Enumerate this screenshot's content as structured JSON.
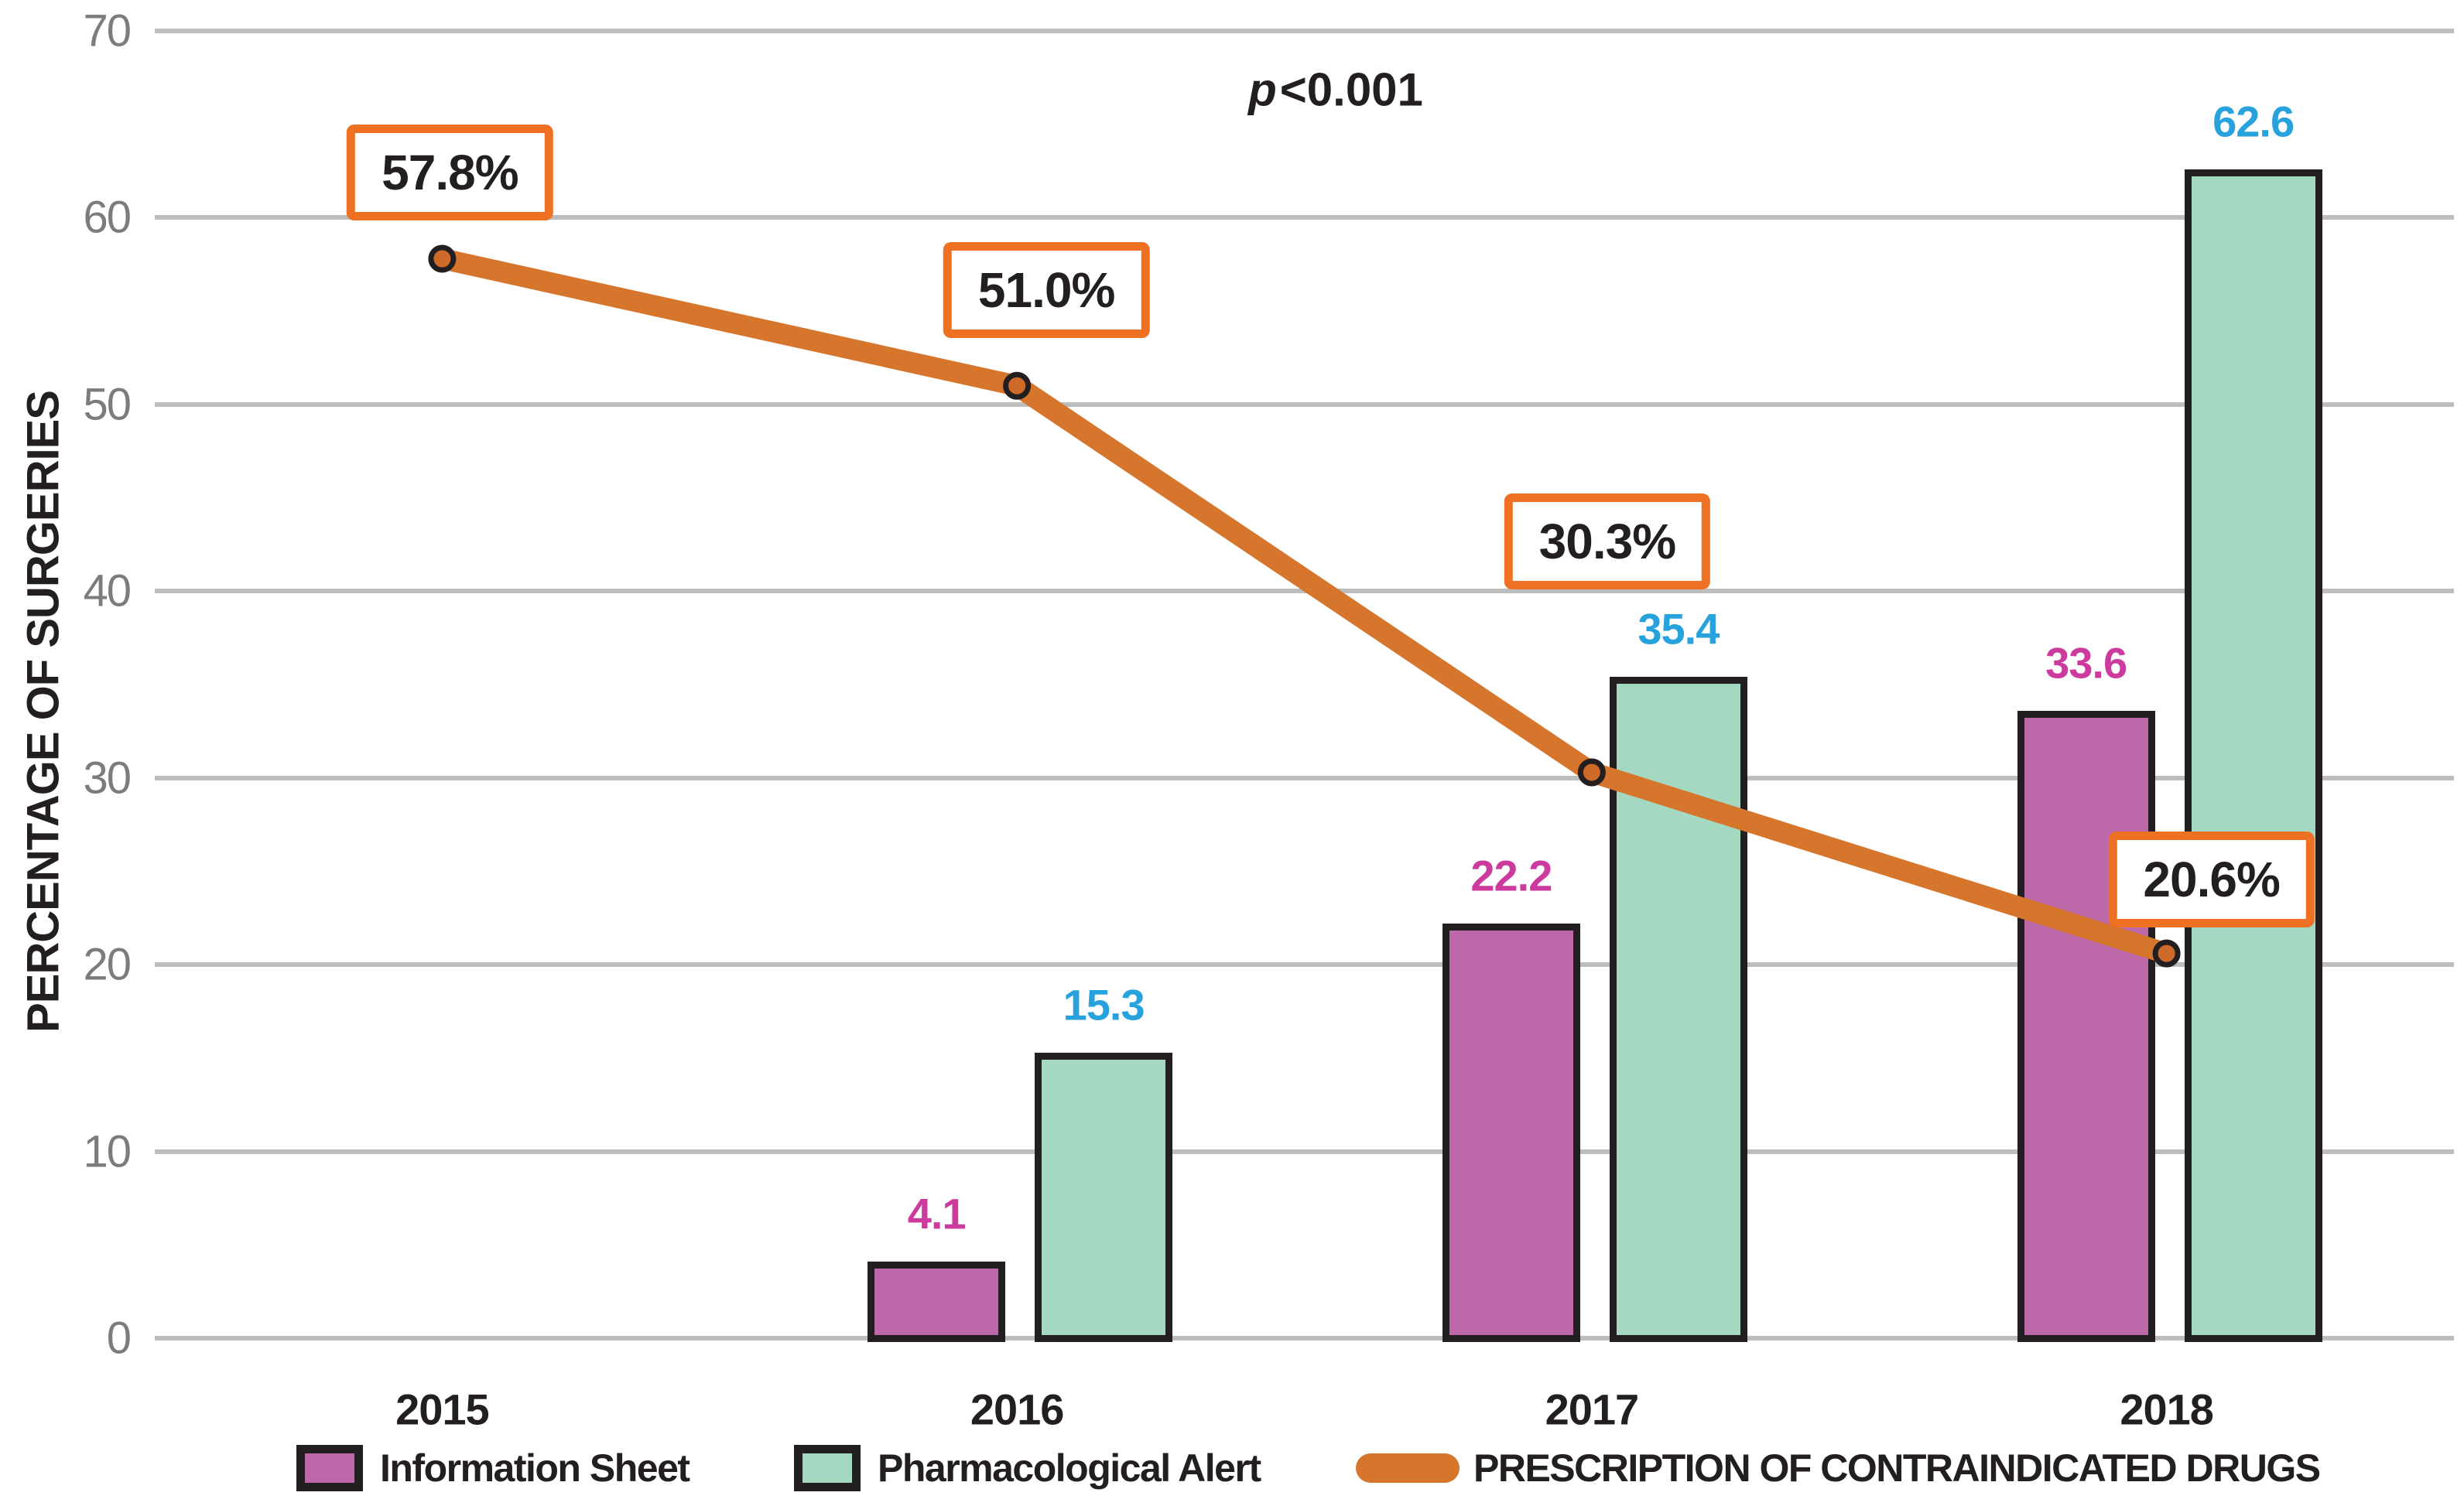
{
  "figure": {
    "annotation_p": "p",
    "annotation_rest": "<0.001"
  },
  "chart_data": {
    "type": "combo-bar-line",
    "categories": [
      "2015",
      "2016",
      "2017",
      "2018"
    ],
    "ylabel": "PERCENTAGE OF SURGERIES",
    "ylim": [
      0,
      70
    ],
    "ytick_step": 10,
    "grid": true,
    "legend_position": "bottom",
    "annotation": "p<0.001",
    "series": [
      {
        "name": "Information Sheet",
        "type": "bar",
        "color": "#bc68a9",
        "label_color": "#cd3a9d",
        "values": [
          null,
          4.1,
          22.2,
          33.6
        ],
        "value_labels": [
          "",
          "4.1",
          "22.2",
          "33.6"
        ]
      },
      {
        "name": "Pharmacological Alert",
        "type": "bar",
        "color": "#a5d8c1",
        "label_color": "#27a2dd",
        "values": [
          null,
          15.3,
          35.4,
          62.6
        ],
        "value_labels": [
          "",
          "15.3",
          "35.4",
          "62.6"
        ]
      },
      {
        "name": "PRESCRIPTION OF CONTRAINDICATED DRUGS",
        "type": "line",
        "color": "#d6752c",
        "marker_fill": "#cf6b28",
        "marker_stroke": "#231f20",
        "callout_border": "#ee7023",
        "values": [
          57.8,
          51.0,
          30.3,
          20.6
        ],
        "point_labels": [
          "57.8%",
          "51.0%",
          "30.3%",
          "20.6%"
        ]
      }
    ],
    "colors": {
      "grid": "#bdbdbd",
      "tick_text": "#7c7c7c",
      "bar_border": "#231f20",
      "text": "#231f20"
    }
  }
}
